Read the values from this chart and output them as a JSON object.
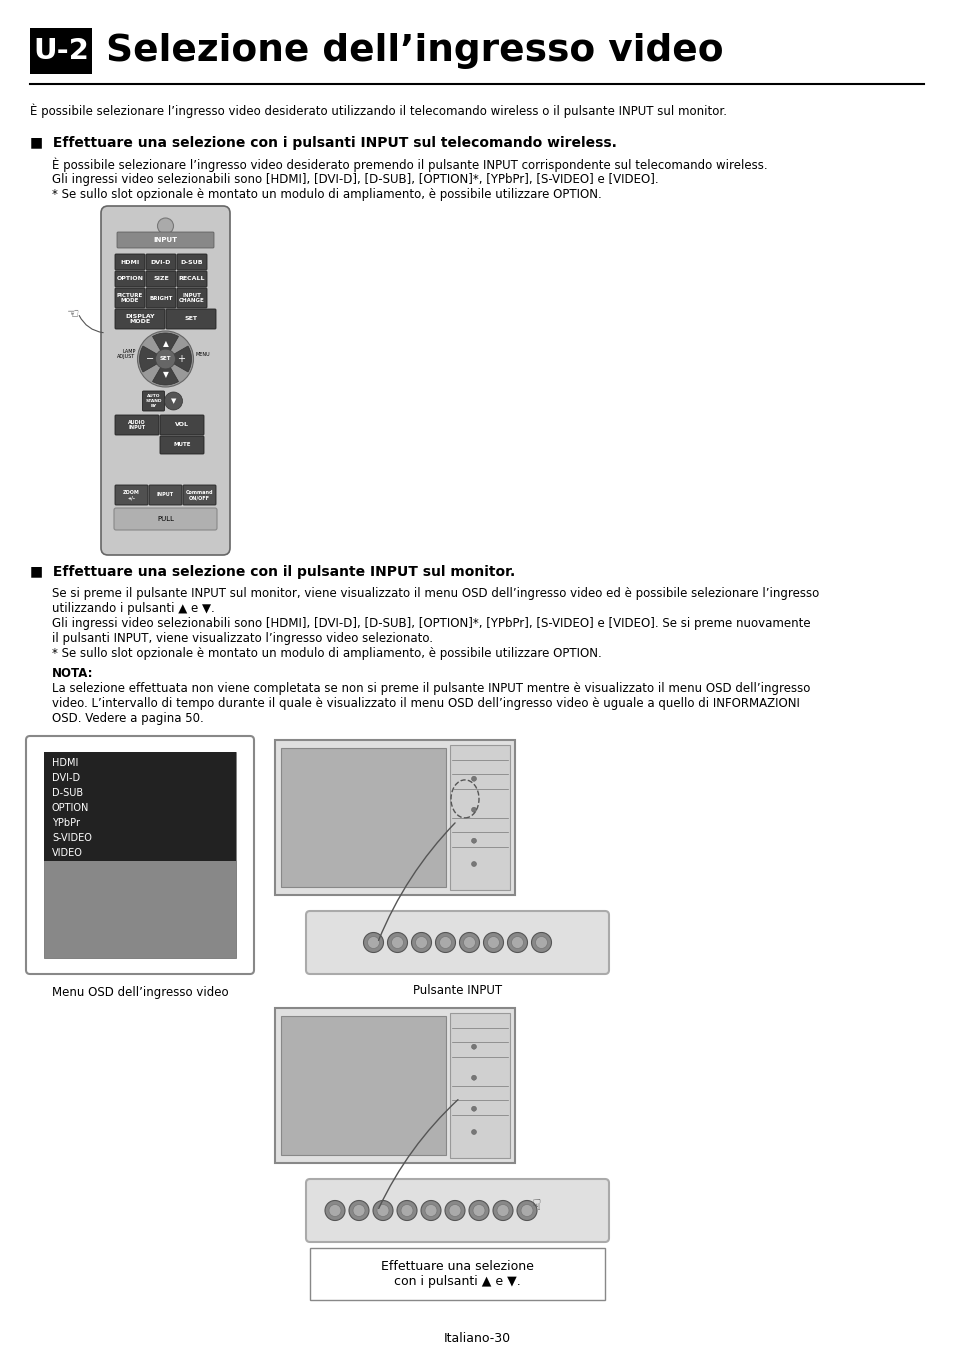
{
  "title_box": "U-2",
  "title_text": "Selezione dell’ingresso video",
  "intro_text": "È possibile selezionare l’ingresso video desiderato utilizzando il telecomando wireless o il pulsante INPUT sul monitor.",
  "section1_heading": "■  Effettuare una selezione con i pulsanti INPUT sul telecomando wireless.",
  "section1_body1": "È possibile selezionare l’ingresso video desiderato premendo il pulsante INPUT corrispondente sul telecomando wireless.",
  "section1_body2": "Gli ingressi video selezionabili sono [HDMI], [DVI-D], [D-SUB], [OPTION]*, [YPbPr], [S-VIDEO] e [VIDEO].",
  "section1_body3": "* Se sullo slot opzionale è montato un modulo di ampliamento, è possibile utilizzare OPTION.",
  "section2_heading": "■  Effettuare una selezione con il pulsante INPUT sul monitor.",
  "section2_body1": "Se si preme il pulsante INPUT sul monitor, viene visualizzato il menu OSD dell’ingresso video ed è possibile selezionare l’ingresso",
  "section2_body2": "utilizzando i pulsanti ▲ e ▼.",
  "section2_body3": "Gli ingressi video selezionabili sono [HDMI], [DVI-D], [D-SUB], [OPTION]*, [YPbPr], [S-VIDEO] e [VIDEO]. Se si preme nuovamente",
  "section2_body4": "il pulsanti INPUT, viene visualizzato l’ingresso video selezionato.",
  "section2_body5": "* Se sullo slot opzionale è montato un modulo di ampliamento, è possibile utilizzare OPTION.",
  "nota_label": "NOTA:",
  "nota_body1": "La selezione effettuata non viene completata se non si preme il pulsante INPUT mentre è visualizzato il menu OSD dell’ingresso",
  "nota_body2": "video. L’intervallo di tempo durante il quale è visualizzato il menu OSD dell’ingresso video è uguale a quello di INFORMAZIONI",
  "nota_body3": "OSD. Vedere a pagina 50.",
  "osd_menu_items": [
    "HDMI",
    "DVI-D",
    "D-SUB",
    "OPTION",
    "YPbPr",
    "S-VIDEO",
    "VIDEO"
  ],
  "caption_osd": "Menu OSD dell’ingresso video",
  "caption_input": "Pulsante INPUT",
  "caption_select": "Effettuare una selezione\ncon i pulsanti ▲ e ▼.",
  "footer": "Italiano-30",
  "bg_color": "#ffffff",
  "text_color": "#000000",
  "heading_color": "#000000"
}
